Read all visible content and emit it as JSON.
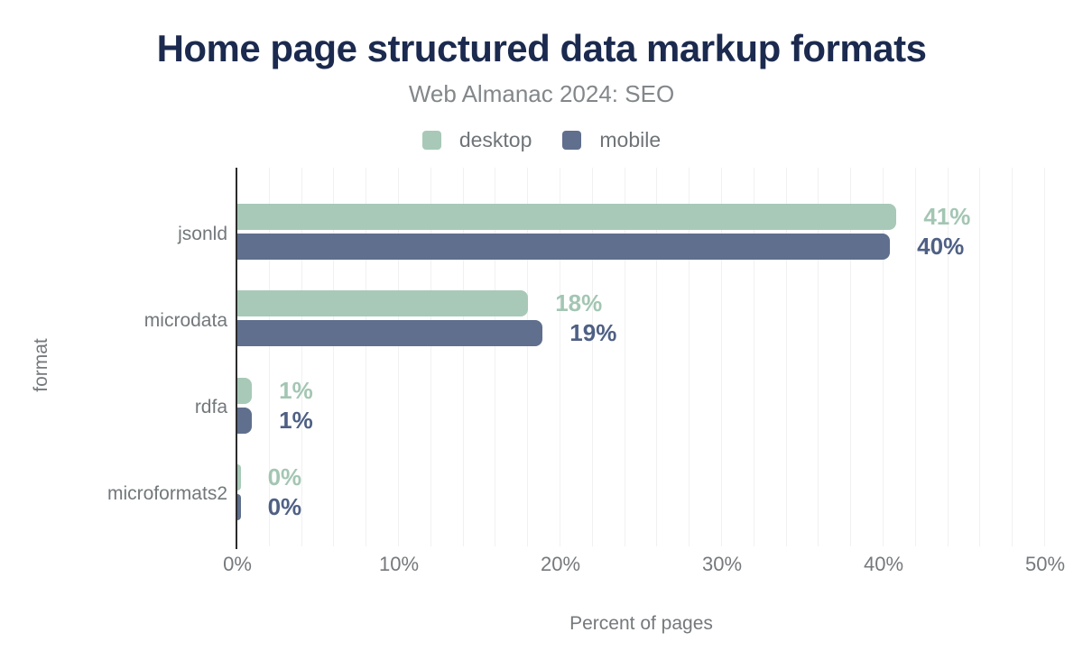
{
  "title": "Home page structured data markup formats",
  "subtitle": "Web Almanac 2024: SEO",
  "legend": [
    {
      "name": "desktop",
      "color": "#a8c9b8"
    },
    {
      "name": "mobile",
      "color": "#5f6f8d"
    }
  ],
  "colors": {
    "title": "#1b2a4e",
    "muted_text": "#75797c",
    "axis_line": "#2b2b2b",
    "gridline": "#f1f1f1",
    "desktop_series": "#a8c9b8",
    "mobile_series": "#5f6f8d",
    "desktop_value_label": "#a3c6b3",
    "mobile_value_label": "#4f6084"
  },
  "chart_data": {
    "type": "bar",
    "orientation": "horizontal",
    "title": "Home page structured data markup formats",
    "subtitle": "Web Almanac 2024: SEO",
    "xlabel": "Percent of pages",
    "ylabel": "format",
    "xlim": [
      0,
      50
    ],
    "grid": "vertical",
    "grid_step": 2,
    "legend_position": "top-center",
    "categories": [
      "jsonld",
      "microdata",
      "rdfa",
      "microformats2"
    ],
    "x_ticks": [
      {
        "value": 0,
        "label": "0%"
      },
      {
        "value": 10,
        "label": "10%"
      },
      {
        "value": 20,
        "label": "20%"
      },
      {
        "value": 30,
        "label": "30%"
      },
      {
        "value": 40,
        "label": "40%"
      },
      {
        "value": 50,
        "label": "50%"
      }
    ],
    "series": [
      {
        "name": "desktop",
        "color": "#a8c9b8",
        "label_color": "#a3c6b3",
        "values": [
          40.8,
          18.0,
          0.9,
          0.2
        ],
        "labels": [
          "41%",
          "18%",
          "1%",
          "0%"
        ]
      },
      {
        "name": "mobile",
        "color": "#5f6f8d",
        "label_color": "#4f6084",
        "values": [
          40.4,
          18.9,
          0.9,
          0.2
        ],
        "labels": [
          "40%",
          "19%",
          "1%",
          "0%"
        ]
      }
    ]
  }
}
